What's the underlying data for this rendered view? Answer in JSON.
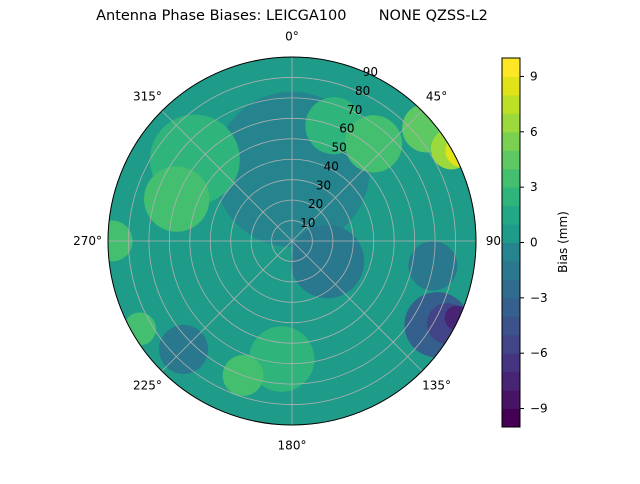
{
  "chart_data": {
    "type": "polar-contour",
    "title": "Antenna Phase Biases: LEICGA100       NONE QZSS-L2",
    "theta_direction": "clockwise",
    "theta_zero": "top",
    "theta_ticks": [
      "0°",
      "45°",
      "90°",
      "135°",
      "180°",
      "225°",
      "270°",
      "315°"
    ],
    "theta_values": [
      0,
      45,
      90,
      135,
      180,
      225,
      270,
      315
    ],
    "r_ticks": [
      "10",
      "20",
      "30",
      "40",
      "50",
      "60",
      "70",
      "80",
      "90"
    ],
    "r_values": [
      10,
      20,
      30,
      40,
      50,
      60,
      70,
      80,
      90
    ],
    "r_lim": [
      0,
      90
    ],
    "grid": true,
    "colorbar": {
      "label": "Bias (mm)",
      "range": [
        -10,
        10
      ],
      "levels_step": 1,
      "tick_labels": [
        "−9",
        "−6",
        "−3",
        "0",
        "3",
        "6",
        "9"
      ],
      "tick_values": [
        -9,
        -6,
        -3,
        0,
        3,
        6,
        9
      ],
      "colormap": "viridis"
    },
    "background_value": 0.5,
    "regions": [
      {
        "azimuth": 0,
        "r": 35,
        "size": 38,
        "value": -1
      },
      {
        "azimuth": 120,
        "r": 20,
        "size": 18,
        "value": -1.5
      },
      {
        "azimuth": 310,
        "r": 62,
        "size": 22,
        "value": 2.5
      },
      {
        "azimuth": 290,
        "r": 60,
        "size": 16,
        "value": 3
      },
      {
        "azimuth": 20,
        "r": 60,
        "size": 14,
        "value": 2.5
      },
      {
        "azimuth": 40,
        "r": 62,
        "size": 14,
        "value": 3
      },
      {
        "azimuth": 185,
        "r": 58,
        "size": 16,
        "value": 2.5
      },
      {
        "azimuth": 200,
        "r": 70,
        "size": 10,
        "value": 3
      },
      {
        "azimuth": 225,
        "r": 75,
        "size": 12,
        "value": -2
      },
      {
        "azimuth": 270,
        "r": 88,
        "size": 10,
        "value": 3
      },
      {
        "azimuth": 240,
        "r": 86,
        "size": 8,
        "value": 3
      },
      {
        "azimuth": 100,
        "r": 70,
        "size": 12,
        "value": -2
      },
      {
        "azimuth": 120,
        "r": 82,
        "size": 16,
        "value": -4
      },
      {
        "azimuth": 118,
        "r": 86,
        "size": 10,
        "value": -6
      },
      {
        "azimuth": 115,
        "r": 89,
        "size": 6,
        "value": -8
      },
      {
        "azimuth": 50,
        "r": 86,
        "size": 12,
        "value": 4
      },
      {
        "azimuth": 60,
        "r": 90,
        "size": 10,
        "value": 6
      },
      {
        "azimuth": 62,
        "r": 94,
        "size": 8,
        "value": 8
      },
      {
        "azimuth": 64,
        "r": 96,
        "size": 5,
        "value": 10
      }
    ]
  }
}
